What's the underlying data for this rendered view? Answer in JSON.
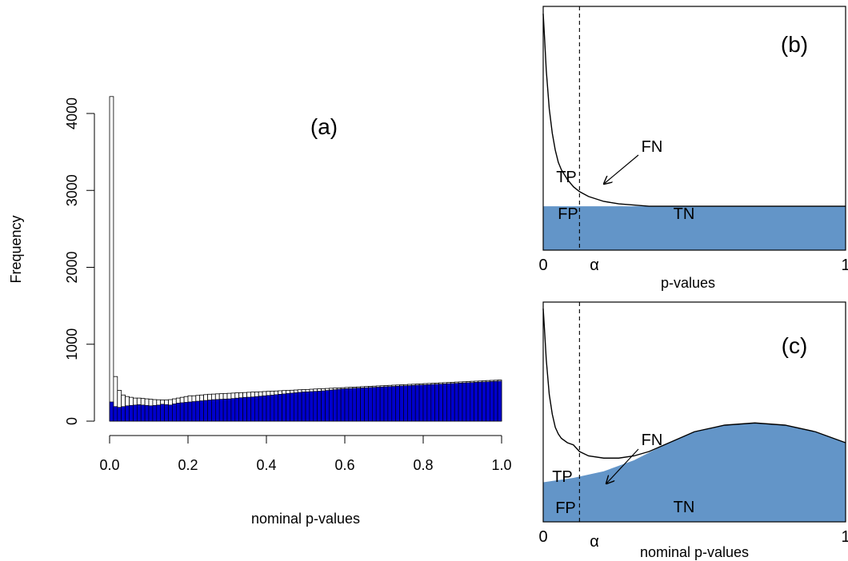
{
  "chart_data": [
    {
      "panel": "(a)",
      "type": "bar",
      "title": "",
      "xlabel": "nominal p-values",
      "ylabel": "Frequency",
      "xlim": [
        0,
        1
      ],
      "ylim": [
        0,
        4300
      ],
      "xticks": [
        "0.0",
        "0.2",
        "0.4",
        "0.6",
        "0.8",
        "1.0"
      ],
      "yticks": [
        "0",
        "1000",
        "2000",
        "3000",
        "4000"
      ],
      "bin_width": 0.01,
      "colors": {
        "total": "#ffffff",
        "null": "#0000cc",
        "edge": "#000000"
      },
      "series": [
        {
          "name": "",
          "values": [
            4220,
            580,
            400,
            340,
            320,
            310,
            300,
            300,
            295,
            290,
            285,
            280,
            278,
            276,
            275,
            280,
            290,
            300,
            310,
            320,
            330,
            330,
            335,
            340,
            345,
            350,
            352,
            355,
            357,
            360,
            362,
            365,
            368,
            370,
            372,
            375,
            378,
            380,
            382,
            385,
            388,
            390,
            392,
            395,
            398,
            400,
            402,
            405,
            408,
            410,
            412,
            415,
            418,
            420,
            422,
            425,
            428,
            430,
            432,
            435,
            438,
            440,
            442,
            445,
            448,
            450,
            452,
            455,
            458,
            460,
            462,
            465,
            468,
            470,
            472,
            475,
            478,
            480,
            482,
            485,
            488,
            490,
            492,
            495,
            498,
            500,
            502,
            505,
            508,
            510,
            512,
            515,
            518,
            520,
            522,
            525,
            528,
            530,
            532,
            535
          ]
        },
        {
          "name": "",
          "values": [
            250,
            190,
            180,
            190,
            200,
            205,
            210,
            215,
            210,
            205,
            200,
            205,
            210,
            220,
            215,
            210,
            225,
            235,
            240,
            245,
            250,
            255,
            260,
            265,
            270,
            275,
            280,
            282,
            285,
            288,
            290,
            295,
            300,
            305,
            310,
            312,
            315,
            320,
            325,
            330,
            335,
            340,
            345,
            350,
            355,
            360,
            365,
            370,
            375,
            380,
            382,
            385,
            388,
            390,
            395,
            400,
            405,
            410,
            415,
            420,
            422,
            425,
            428,
            430,
            432,
            435,
            438,
            440,
            442,
            445,
            448,
            450,
            452,
            455,
            458,
            460,
            462,
            465,
            468,
            470,
            472,
            475,
            478,
            480,
            482,
            485,
            488,
            490,
            492,
            495,
            498,
            500,
            502,
            505,
            508,
            510,
            512,
            515,
            518,
            520
          ]
        }
      ]
    },
    {
      "panel": "(b)",
      "type": "area",
      "title": "",
      "xlabel": "p-values",
      "ylabel": "",
      "xlim": [
        0,
        1
      ],
      "ylim": [
        0,
        1
      ],
      "xticks": [
        "0",
        "α",
        "1"
      ],
      "alpha": 0.12,
      "null_level": 0.18,
      "density_curve": {
        "x": [
          0,
          0.005,
          0.01,
          0.02,
          0.03,
          0.04,
          0.05,
          0.06,
          0.08,
          0.1,
          0.12,
          0.15,
          0.2,
          0.25,
          0.3,
          0.35,
          0.4,
          1.0
        ],
        "y": [
          0.97,
          0.86,
          0.74,
          0.58,
          0.48,
          0.41,
          0.36,
          0.33,
          0.29,
          0.26,
          0.24,
          0.22,
          0.2,
          0.19,
          0.185,
          0.18,
          0.18,
          0.18
        ]
      },
      "region_labels": [
        "TP",
        "FN",
        "FP",
        "TN"
      ],
      "colors": {
        "null_fill": "#6395c8",
        "curve": "#000000"
      }
    },
    {
      "panel": "(c)",
      "type": "area",
      "title": "",
      "xlabel": "nominal p-values",
      "ylabel": "",
      "xlim": [
        0,
        1
      ],
      "ylim": [
        0,
        1
      ],
      "xticks": [
        "0",
        "α",
        "1"
      ],
      "alpha": 0.12,
      "null_curve": {
        "x": [
          0,
          0.1,
          0.2,
          0.3,
          0.4,
          0.5,
          0.6,
          0.7,
          0.8,
          0.9,
          1.0
        ],
        "y": [
          0.18,
          0.2,
          0.23,
          0.28,
          0.35,
          0.41,
          0.44,
          0.45,
          0.44,
          0.41,
          0.36
        ]
      },
      "density_curve": {
        "x": [
          0,
          0.005,
          0.01,
          0.02,
          0.03,
          0.04,
          0.05,
          0.06,
          0.08,
          0.1,
          0.12,
          0.15,
          0.2,
          0.25,
          0.3,
          0.35,
          0.4,
          0.5,
          0.6,
          0.7,
          0.8,
          0.9,
          1.0
        ],
        "y": [
          0.97,
          0.86,
          0.74,
          0.58,
          0.49,
          0.43,
          0.4,
          0.38,
          0.36,
          0.35,
          0.32,
          0.3,
          0.29,
          0.29,
          0.3,
          0.32,
          0.35,
          0.41,
          0.44,
          0.45,
          0.44,
          0.41,
          0.36
        ]
      },
      "region_labels": [
        "TP",
        "FN",
        "FP",
        "TN"
      ],
      "colors": {
        "null_fill": "#6395c8",
        "curve": "#000000"
      }
    }
  ]
}
